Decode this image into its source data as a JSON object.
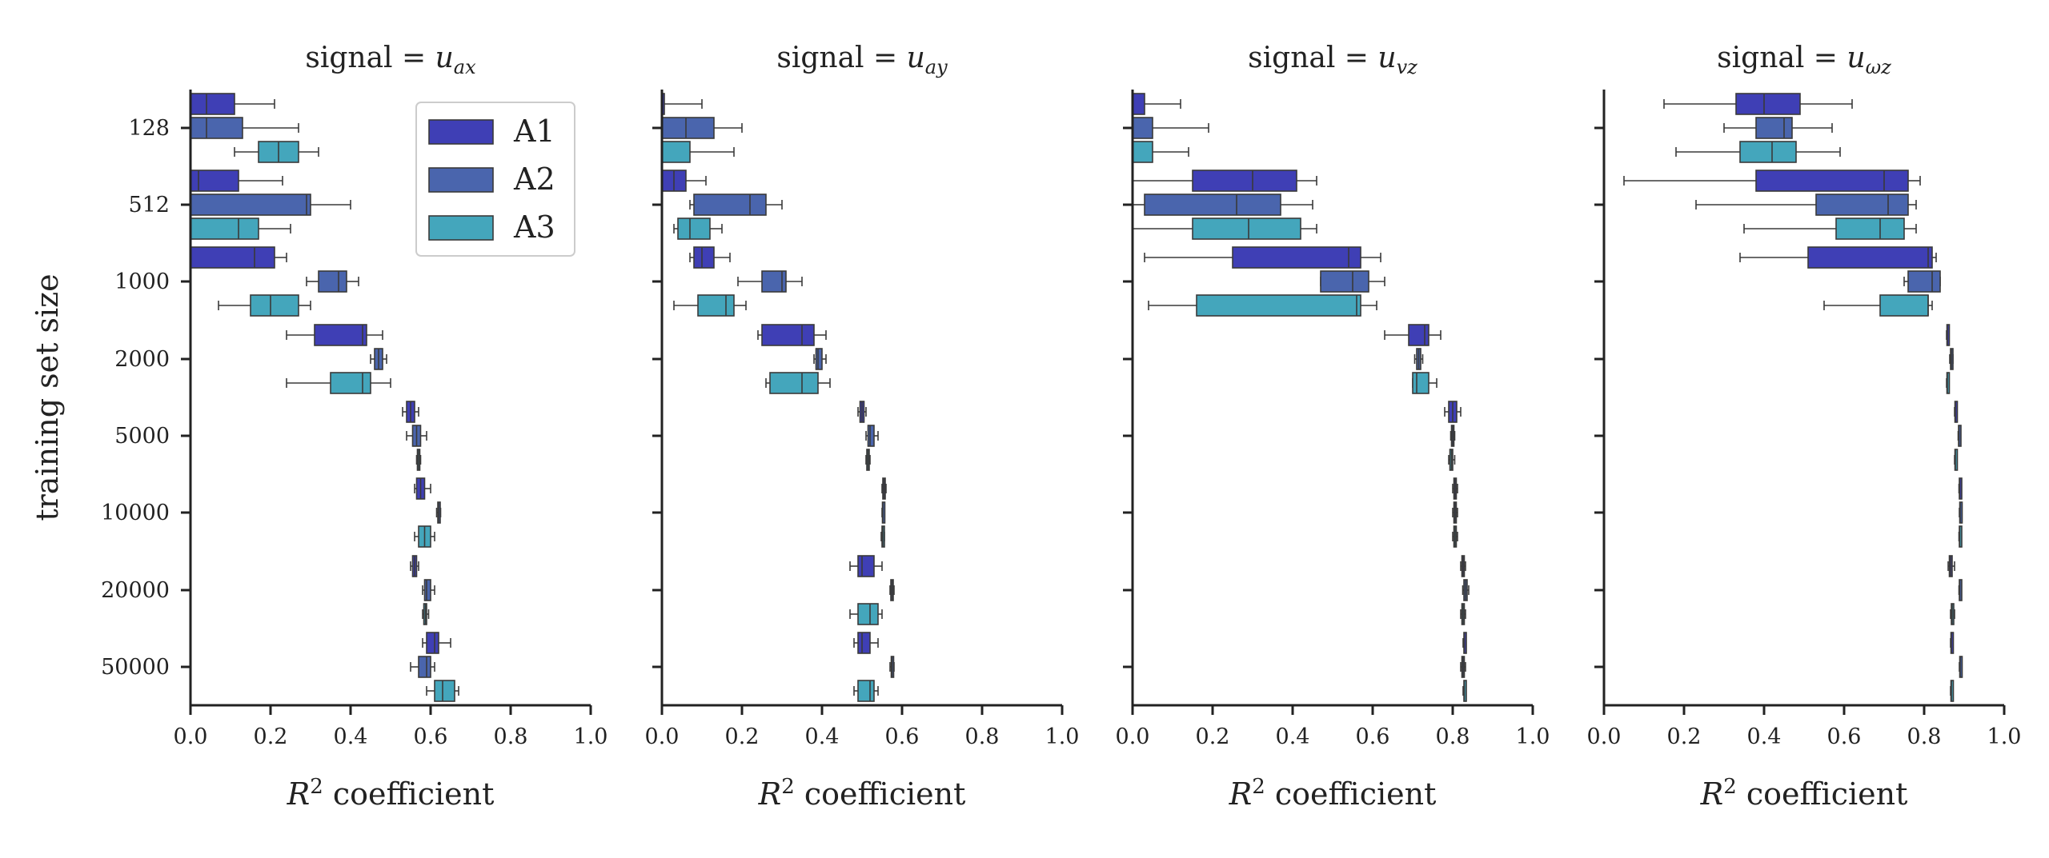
{
  "chart_data": {
    "type": "box",
    "ylabel": "training set size",
    "categories": [
      "128",
      "512",
      "1000",
      "2000",
      "5000",
      "10000",
      "20000",
      "50000"
    ],
    "series_names": [
      "A1",
      "A2",
      "A3"
    ],
    "colors": {
      "A1": "#3f3fb5",
      "A2": "#4a65ad",
      "A3": "#44a6bc"
    },
    "xlim": [
      0,
      1
    ],
    "xticks": [
      "0.0",
      "0.2",
      "0.4",
      "0.6",
      "0.8",
      "1.0"
    ],
    "xticks_values": [
      0,
      0.2,
      0.4,
      0.6,
      0.8,
      1.0
    ],
    "legend_location": "top-right of first panel",
    "panels": [
      {
        "title_prefix": "signal = ",
        "title_var": "u",
        "title_sub": "ax",
        "xlabel_base": "R",
        "xlabel_sup": "2",
        "xlabel_rest": " coefficient",
        "boxes": {
          "A1": [
            [
              0,
              0,
              0.04,
              0.11,
              0.21
            ],
            [
              0,
              0,
              0.02,
              0.12,
              0.23
            ],
            [
              0,
              0,
              0.16,
              0.21,
              0.24
            ],
            [
              0.24,
              0.31,
              0.43,
              0.44,
              0.48
            ],
            [
              0.53,
              0.54,
              0.55,
              0.56,
              0.57
            ],
            [
              0.56,
              0.565,
              0.575,
              0.585,
              0.6
            ],
            [
              0.55,
              0.555,
              0.56,
              0.565,
              0.57
            ],
            [
              0.58,
              0.59,
              0.61,
              0.62,
              0.65
            ]
          ],
          "A2": [
            [
              0,
              0,
              0.04,
              0.13,
              0.27
            ],
            [
              0,
              0,
              0.29,
              0.3,
              0.4
            ],
            [
              0.29,
              0.32,
              0.37,
              0.39,
              0.42
            ],
            [
              0.45,
              0.46,
              0.47,
              0.48,
              0.49
            ],
            [
              0.54,
              0.555,
              0.565,
              0.575,
              0.59
            ],
            [
              0.615,
              0.618,
              0.62,
              0.622,
              0.625
            ],
            [
              0.58,
              0.585,
              0.59,
              0.6,
              0.61
            ],
            [
              0.55,
              0.57,
              0.59,
              0.6,
              0.61
            ]
          ],
          "A3": [
            [
              0.11,
              0.17,
              0.22,
              0.27,
              0.32
            ],
            [
              0,
              0,
              0.12,
              0.17,
              0.25
            ],
            [
              0.07,
              0.15,
              0.2,
              0.27,
              0.3
            ],
            [
              0.24,
              0.35,
              0.43,
              0.45,
              0.5
            ],
            [
              0.565,
              0.567,
              0.57,
              0.572,
              0.575
            ],
            [
              0.56,
              0.57,
              0.585,
              0.6,
              0.61
            ],
            [
              0.58,
              0.583,
              0.587,
              0.59,
              0.595
            ],
            [
              0.59,
              0.61,
              0.63,
              0.66,
              0.67
            ]
          ]
        }
      },
      {
        "title_prefix": "signal = ",
        "title_var": "u",
        "title_sub": "ay",
        "xlabel_base": "R",
        "xlabel_sup": "2",
        "xlabel_rest": " coefficient",
        "boxes": {
          "A1": [
            [
              0,
              0,
              0,
              0,
              0.1
            ],
            [
              0,
              0,
              0.03,
              0.06,
              0.11
            ],
            [
              0.07,
              0.08,
              0.1,
              0.13,
              0.17
            ],
            [
              0.24,
              0.25,
              0.35,
              0.38,
              0.41
            ],
            [
              0.49,
              0.495,
              0.5,
              0.505,
              0.51
            ],
            [
              0.55,
              0.552,
              0.555,
              0.558,
              0.56
            ],
            [
              0.47,
              0.49,
              0.5,
              0.53,
              0.55
            ],
            [
              0.48,
              0.49,
              0.5,
              0.52,
              0.54
            ]
          ],
          "A2": [
            [
              0,
              0,
              0.06,
              0.13,
              0.2
            ],
            [
              0.07,
              0.08,
              0.22,
              0.26,
              0.3
            ],
            [
              0.19,
              0.25,
              0.3,
              0.31,
              0.35
            ],
            [
              0.38,
              0.385,
              0.39,
              0.4,
              0.41
            ],
            [
              0.51,
              0.515,
              0.52,
              0.53,
              0.54
            ],
            [
              0.55,
              0.551,
              0.552,
              0.553,
              0.555
            ],
            [
              0.57,
              0.572,
              0.575,
              0.577,
              0.58
            ],
            [
              0.57,
              0.573,
              0.575,
              0.578,
              0.58
            ]
          ],
          "A3": [
            [
              0,
              0,
              0,
              0.07,
              0.18
            ],
            [
              0.03,
              0.04,
              0.07,
              0.12,
              0.15
            ],
            [
              0.03,
              0.09,
              0.16,
              0.18,
              0.21
            ],
            [
              0.26,
              0.27,
              0.35,
              0.39,
              0.42
            ],
            [
              0.51,
              0.512,
              0.515,
              0.518,
              0.52
            ],
            [
              0.548,
              0.55,
              0.552,
              0.554,
              0.556
            ],
            [
              0.47,
              0.49,
              0.52,
              0.54,
              0.55
            ],
            [
              0.48,
              0.49,
              0.52,
              0.53,
              0.54
            ]
          ]
        }
      },
      {
        "title_prefix": "signal = ",
        "title_var": "u",
        "title_sub": "vz",
        "xlabel_base": "R",
        "xlabel_sup": "2",
        "xlabel_rest": " coefficient",
        "boxes": {
          "A1": [
            [
              0,
              0,
              0,
              0.03,
              0.12
            ],
            [
              0,
              0.15,
              0.3,
              0.41,
              0.46
            ],
            [
              0.03,
              0.25,
              0.54,
              0.57,
              0.62
            ],
            [
              0.63,
              0.69,
              0.73,
              0.74,
              0.77
            ],
            [
              0.78,
              0.79,
              0.8,
              0.81,
              0.82
            ],
            [
              0.8,
              0.803,
              0.806,
              0.809,
              0.812
            ],
            [
              0.82,
              0.823,
              0.826,
              0.829,
              0.832
            ],
            [
              0.826,
              0.828,
              0.829,
              0.83,
              0.832
            ]
          ],
          "A2": [
            [
              0,
              0,
              0,
              0.05,
              0.19
            ],
            [
              0,
              0.03,
              0.26,
              0.37,
              0.45
            ],
            [
              0.47,
              0.47,
              0.55,
              0.59,
              0.63
            ],
            [
              0.705,
              0.71,
              0.715,
              0.72,
              0.725
            ],
            [
              0.795,
              0.797,
              0.8,
              0.803,
              0.805
            ],
            [
              0.8,
              0.803,
              0.806,
              0.809,
              0.812
            ],
            [
              0.825,
              0.828,
              0.832,
              0.836,
              0.84
            ],
            [
              0.82,
              0.823,
              0.826,
              0.829,
              0.832
            ]
          ],
          "A3": [
            [
              0,
              0,
              0,
              0.05,
              0.14
            ],
            [
              0,
              0.15,
              0.29,
              0.42,
              0.46
            ],
            [
              0.04,
              0.16,
              0.56,
              0.57,
              0.61
            ],
            [
              0.7,
              0.7,
              0.71,
              0.74,
              0.76
            ],
            [
              0.79,
              0.793,
              0.797,
              0.8,
              0.805
            ],
            [
              0.8,
              0.803,
              0.806,
              0.809,
              0.812
            ],
            [
              0.82,
              0.823,
              0.826,
              0.829,
              0.832
            ],
            [
              0.826,
              0.828,
              0.829,
              0.83,
              0.832
            ]
          ]
        }
      },
      {
        "title_prefix": "signal = ",
        "title_var": "u",
        "title_sub": "ωz",
        "xlabel_base": "R",
        "xlabel_sup": "2",
        "xlabel_rest": " coefficient",
        "boxes": {
          "A1": [
            [
              0.15,
              0.33,
              0.4,
              0.49,
              0.62
            ],
            [
              0.05,
              0.38,
              0.7,
              0.76,
              0.79
            ],
            [
              0.34,
              0.51,
              0.81,
              0.82,
              0.83
            ],
            [
              0.856,
              0.857,
              0.858,
              0.859,
              0.86
            ],
            [
              0.876,
              0.877,
              0.878,
              0.879,
              0.88
            ],
            [
              0.887,
              0.888,
              0.889,
              0.89,
              0.891
            ],
            [
              0.86,
              0.863,
              0.866,
              0.87,
              0.876
            ],
            [
              0.866,
              0.867,
              0.868,
              0.869,
              0.87
            ]
          ],
          "A2": [
            [
              0.3,
              0.38,
              0.45,
              0.47,
              0.57
            ],
            [
              0.23,
              0.53,
              0.71,
              0.76,
              0.78
            ],
            [
              0.75,
              0.76,
              0.82,
              0.84,
              0.84
            ],
            [
              0.864,
              0.866,
              0.868,
              0.87,
              0.872
            ],
            [
              0.885,
              0.886,
              0.887,
              0.888,
              0.889
            ],
            [
              0.888,
              0.889,
              0.89,
              0.891,
              0.892
            ],
            [
              0.887,
              0.888,
              0.889,
              0.89,
              0.891
            ],
            [
              0.888,
              0.889,
              0.89,
              0.891,
              0.892
            ]
          ],
          "A3": [
            [
              0.18,
              0.34,
              0.42,
              0.48,
              0.59
            ],
            [
              0.35,
              0.58,
              0.69,
              0.75,
              0.78
            ],
            [
              0.55,
              0.69,
              0.81,
              0.81,
              0.82
            ],
            [
              0.856,
              0.857,
              0.858,
              0.859,
              0.86
            ],
            [
              0.876,
              0.877,
              0.878,
              0.879,
              0.88
            ],
            [
              0.887,
              0.888,
              0.889,
              0.89,
              0.891
            ],
            [
              0.866,
              0.868,
              0.87,
              0.873,
              0.876
            ],
            [
              0.866,
              0.867,
              0.868,
              0.869,
              0.87
            ]
          ]
        }
      }
    ]
  }
}
